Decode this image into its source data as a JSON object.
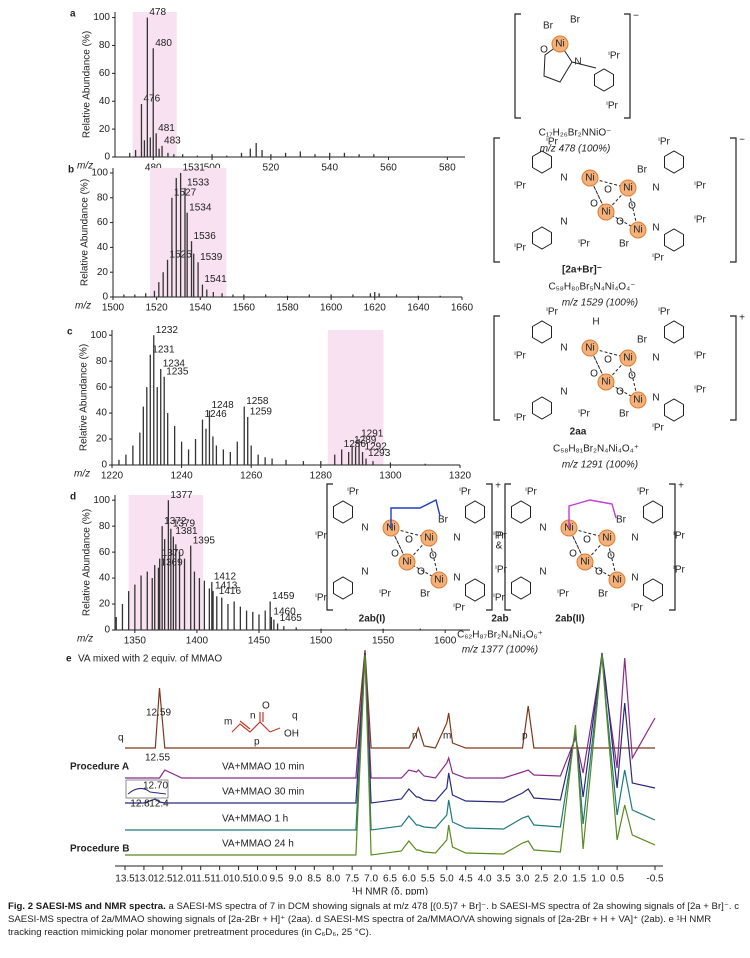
{
  "chart_data": [
    {
      "type": "bar",
      "panel": "a",
      "xlabel": "m/z",
      "ylabel": "Relative Abundance (%)",
      "xlim": [
        467,
        586
      ],
      "ylim": [
        0,
        104
      ],
      "xticks": [
        480,
        500,
        520,
        540,
        560,
        580
      ],
      "yticks": [
        0,
        20,
        40,
        60,
        80,
        100
      ],
      "color": "#333333",
      "highlight": [
        473,
        488
      ],
      "x": [
        472,
        474,
        476,
        477,
        478,
        479,
        480,
        481,
        482,
        483,
        485,
        487,
        490,
        495,
        500,
        505,
        510,
        513,
        515,
        517,
        520,
        525,
        530,
        535,
        540,
        545,
        550,
        555
      ],
      "values": [
        3,
        5,
        38,
        12,
        100,
        14,
        78,
        17,
        6,
        8,
        3,
        2,
        2,
        1,
        2,
        1,
        3,
        6,
        10,
        5,
        2,
        3,
        4,
        2,
        3,
        3,
        2,
        2
      ],
      "peak_labels": [
        null,
        null,
        "476",
        null,
        "478",
        null,
        "480",
        "481",
        null,
        "483",
        null,
        null,
        null,
        null,
        null,
        null,
        null,
        null,
        null,
        null,
        null,
        null,
        null,
        null,
        null,
        null,
        null,
        null
      ]
    },
    {
      "type": "bar",
      "panel": "b",
      "xlabel": "m/z",
      "ylabel": "Relative Abundance (%)",
      "xlim": [
        1500,
        1660
      ],
      "ylim": [
        0,
        104
      ],
      "xticks": [
        1500,
        1520,
        1540,
        1560,
        1580,
        1600,
        1620,
        1640,
        1660
      ],
      "yticks": [
        0,
        20,
        40,
        60,
        80,
        100
      ],
      "color": "#333333",
      "highlight": [
        1517,
        1552
      ],
      "x": [
        1505,
        1510,
        1515,
        1519,
        1521,
        1523,
        1525,
        1527,
        1529,
        1531,
        1533,
        1534,
        1536,
        1537,
        1539,
        1541,
        1543,
        1546,
        1550,
        1555,
        1560,
        1570,
        1580,
        1590,
        1600,
        1610,
        1618,
        1620,
        1622,
        1630,
        1640,
        1650
      ],
      "values": [
        2,
        2,
        3,
        5,
        12,
        20,
        30,
        80,
        96,
        100,
        88,
        68,
        45,
        35,
        28,
        10,
        6,
        4,
        3,
        2,
        2,
        2,
        1,
        2,
        2,
        2,
        3,
        4,
        3,
        2,
        1,
        1
      ],
      "peak_labels": [
        null,
        null,
        null,
        null,
        null,
        null,
        "1525",
        "1527",
        null,
        "1531",
        "1533",
        "1534",
        "1536",
        null,
        "1539",
        "1541",
        null,
        null,
        null,
        null,
        null,
        null,
        null,
        null,
        null,
        null,
        null,
        null,
        null,
        null,
        null,
        null
      ]
    },
    {
      "type": "bar",
      "panel": "c",
      "xlabel": "m/z",
      "ylabel": "Relative Abundance (%)",
      "xlim": [
        1220,
        1320
      ],
      "ylim": [
        0,
        104
      ],
      "xticks": [
        1220,
        1240,
        1260,
        1280,
        1300,
        1320
      ],
      "yticks": [
        0,
        20,
        40,
        60,
        80,
        100
      ],
      "color": "#333333",
      "highlight": [
        1282,
        1298
      ],
      "x": [
        1222,
        1224,
        1226,
        1228,
        1229,
        1230,
        1231,
        1232,
        1233,
        1234,
        1235,
        1236,
        1238,
        1240,
        1242,
        1244,
        1246,
        1247,
        1248,
        1249,
        1250,
        1252,
        1254,
        1256,
        1258,
        1259,
        1260,
        1262,
        1264,
        1266,
        1270,
        1275,
        1280,
        1284,
        1286,
        1288,
        1289,
        1290,
        1291,
        1292,
        1293,
        1295,
        1300,
        1310
      ],
      "values": [
        4,
        8,
        15,
        25,
        45,
        60,
        85,
        100,
        60,
        74,
        68,
        40,
        30,
        18,
        12,
        20,
        35,
        28,
        42,
        22,
        15,
        12,
        10,
        18,
        45,
        37,
        15,
        8,
        6,
        5,
        4,
        3,
        3,
        8,
        12,
        10,
        15,
        14,
        20,
        10,
        5,
        3,
        2,
        1
      ],
      "peak_labels": [
        null,
        null,
        null,
        null,
        null,
        null,
        "1231",
        "1232",
        null,
        "1234",
        "1235",
        null,
        null,
        null,
        null,
        null,
        "1246",
        null,
        "1248",
        null,
        null,
        null,
        null,
        null,
        "1258",
        "1259",
        null,
        null,
        null,
        null,
        null,
        null,
        null,
        null,
        "1286",
        null,
        "1289",
        null,
        "1291",
        "1292",
        "1293",
        null,
        null,
        null
      ]
    },
    {
      "type": "bar",
      "panel": "d",
      "xlabel": "m/z",
      "ylabel": "Relative Abundance (%)",
      "xlim": [
        1334,
        1620
      ],
      "ylim": [
        0,
        104
      ],
      "xticks": [
        1350,
        1400,
        1450,
        1500,
        1550,
        1600
      ],
      "yticks": [
        0,
        20,
        40,
        60,
        80,
        100
      ],
      "color": "#333333",
      "highlight": [
        1345,
        1405
      ],
      "x": [
        1335,
        1340,
        1345,
        1350,
        1355,
        1360,
        1364,
        1366,
        1369,
        1370,
        1372,
        1374,
        1377,
        1379,
        1381,
        1383,
        1386,
        1390,
        1395,
        1398,
        1402,
        1406,
        1410,
        1412,
        1413,
        1416,
        1420,
        1425,
        1430,
        1435,
        1440,
        1445,
        1450,
        1455,
        1459,
        1460,
        1462,
        1465,
        1470,
        1480,
        1500,
        1520,
        1550,
        1580
      ],
      "values": [
        10,
        20,
        30,
        35,
        42,
        45,
        40,
        50,
        48,
        55,
        80,
        70,
        100,
        78,
        72,
        66,
        60,
        55,
        65,
        45,
        40,
        38,
        32,
        37,
        30,
        26,
        25,
        20,
        22,
        18,
        15,
        14,
        12,
        15,
        22,
        10,
        8,
        5,
        3,
        2,
        1,
        1,
        1,
        1
      ],
      "peak_labels": [
        null,
        null,
        null,
        null,
        null,
        null,
        null,
        null,
        "1369",
        "1370",
        "1372",
        null,
        "1377",
        "1379",
        "1381",
        null,
        null,
        null,
        "1395",
        null,
        null,
        null,
        null,
        "1412",
        "1413",
        "1416",
        null,
        null,
        null,
        null,
        null,
        null,
        null,
        null,
        "1459",
        "1460",
        null,
        "1465",
        null,
        null,
        null,
        null,
        null,
        null
      ]
    },
    {
      "type": "line",
      "panel": "e",
      "title": "VA mixed with 2 equiv. of MMAO",
      "xlabel": "¹H NMR (δ, ppm)",
      "xlim": [
        13.5,
        -0.5
      ],
      "xticks": [
        13.5,
        {
          "value": 13,
          "label": "13.0"
        },
        12.5,
        {
          "value": 12,
          "label": "12.0"
        },
        11.5,
        {
          "value": 11,
          "label": "11.0"
        },
        10.5,
        {
          "value": 10,
          "label": "10.0"
        },
        9.5,
        {
          "value": 9,
          "label": "9.0"
        },
        8.5,
        {
          "value": 8,
          "label": "8.0"
        },
        7.5,
        {
          "value": 7,
          "label": "7.0"
        },
        6.5,
        {
          "value": 6,
          "label": "6.0"
        },
        5.5,
        {
          "value": 5,
          "label": "5.0"
        },
        4.5,
        {
          "value": 4,
          "label": "4.0"
        },
        3.5,
        {
          "value": 3,
          "label": "3.0"
        },
        2.5,
        {
          "value": 2,
          "label": "2.0"
        },
        1.5,
        {
          "value": 1,
          "label": "1.0"
        },
        0.5,
        -0.5
      ],
      "x": [
        13.5,
        13.0,
        12.7,
        12.59,
        12.45,
        12.0,
        11.0,
        9.0,
        7.4,
        7.16,
        7.0,
        6.2,
        6.0,
        5.8,
        5.75,
        5.6,
        5.3,
        5.0,
        4.95,
        4.85,
        4.5,
        3.5,
        3.0,
        2.85,
        2.7,
        2.0,
        1.6,
        1.4,
        0.9,
        0.8,
        0.5,
        0.3,
        0.1,
        -0.5
      ],
      "series": [
        {
          "color": "#7b3a1c",
          "values": [
            0,
            0,
            0,
            60,
            0,
            0,
            0,
            0,
            0,
            98,
            0,
            0,
            0,
            15,
            20,
            2,
            0,
            25,
            35,
            5,
            0,
            0,
            0,
            42,
            0,
            0,
            0,
            0,
            0,
            0,
            0,
            0,
            0,
            0
          ]
        },
        {
          "name": "VA+MMAO 10 min",
          "color": "#8a2a8a",
          "values": [
            0,
            0,
            0,
            0,
            8,
            0,
            0,
            0,
            0,
            125,
            0,
            0,
            8,
            6,
            8,
            2,
            0,
            15,
            20,
            5,
            0,
            0,
            6,
            8,
            3,
            2,
            40,
            5,
            120,
            90,
            10,
            120,
            20,
            60
          ]
        },
        {
          "name": "VA+MMAO 30 min",
          "color": "#2a2a7a",
          "values": [
            0,
            0,
            4,
            1,
            0,
            0,
            0,
            0,
            0,
            150,
            0,
            4,
            14,
            6,
            6,
            3,
            2,
            15,
            30,
            8,
            2,
            1,
            10,
            14,
            5,
            3,
            70,
            6,
            150,
            120,
            15,
            100,
            20,
            15
          ]
        },
        {
          "name": "VA+MMAO 1 h",
          "color": "#1f7a7a",
          "values": [
            0,
            0,
            0,
            0,
            0,
            0,
            0,
            0,
            0,
            175,
            0,
            4,
            14,
            5,
            5,
            3,
            2,
            15,
            30,
            8,
            2,
            1,
            12,
            14,
            5,
            3,
            100,
            6,
            175,
            130,
            15,
            60,
            20,
            10
          ]
        },
        {
          "name": "VA+MMAO 24 h",
          "color": "#5a8a1f",
          "values": [
            0,
            0,
            0,
            0,
            0,
            0,
            0,
            0,
            0,
            200,
            0,
            4,
            14,
            5,
            5,
            3,
            2,
            15,
            30,
            8,
            2,
            1,
            12,
            14,
            5,
            3,
            130,
            6,
            200,
            150,
            15,
            50,
            20,
            10
          ]
        }
      ],
      "peak_labels": [
        "12.59",
        "12.55",
        "12.70"
      ],
      "inset_ticks": [
        "12.8",
        "12.4"
      ],
      "assignments": [
        "q",
        "n",
        "m",
        "p"
      ],
      "va_labels": [
        "m",
        "n",
        "p",
        "q",
        "O",
        "OH"
      ],
      "procedures": [
        "Procedure A",
        "Procedure B"
      ]
    }
  ],
  "atoms": {
    "ni": "Ni",
    "br": "Br",
    "o": "O",
    "n": "N",
    "ipr": "ⁱPr",
    "h": "H",
    "minus": "−",
    "plus": "+",
    "amp": "&"
  },
  "structures": {
    "a": {
      "formula": "C₁₇H₂₆Br₂NNiO⁻",
      "mz": "m/z 478 (100%)"
    },
    "b": {
      "name": "[2a+Br]⁻",
      "formula": "C₅₈H₈₀Br₅N₄Ni₄O₄⁻",
      "mz": "m/z 1529 (100%)"
    },
    "c": {
      "name": "2aa",
      "formula": "C₅₈H₈₁Br₂N₄Ni₄O₄⁺",
      "mz": "m/z 1291 (100%)"
    },
    "d": {
      "name_1": "2ab(I)",
      "name": "2ab",
      "name_2": "2ab(II)",
      "formula": "C₆₂H₈₇Br₂N₄Ni₄O₆⁺",
      "mz": "m/z 1377 (100%)"
    }
  },
  "caption": {
    "lead": "Fig. 2 SAESI-MS and NMR spectra.",
    "body": " a SAESI-MS spectra of 7 in DCM showing signals at m/z 478 [(0.5)7 + Br]⁻. b SAESI-MS spectra of 2a showing signals of [2a + Br]⁻. c SAESI-MS spectra of 2a/MMAO showing signals of [2a-2Br + H]⁺ (2aa). d SAESI-MS spectra of 2a/MMAO/VA showing signals of [2a-2Br + H + VA]⁺ (2ab). e ¹H NMR tracking reaction mimicking polar monomer pretreatment procedures (in C₆D₆, 25 °C)."
  }
}
